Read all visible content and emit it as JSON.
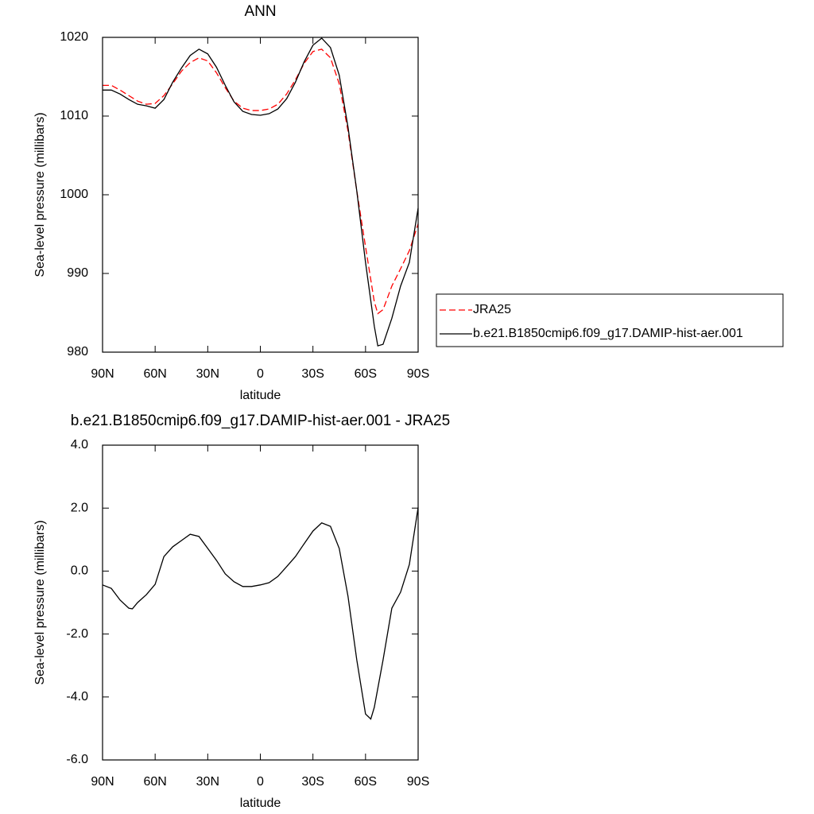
{
  "chart_data": [
    {
      "type": "line",
      "title": "ANN",
      "x_label": "latitude",
      "y_label": "Sea-level pressure (millibars)",
      "x": [
        90,
        85,
        80,
        75,
        70,
        65,
        60,
        55,
        50,
        45,
        40,
        35,
        30,
        25,
        20,
        15,
        10,
        5,
        0,
        -5,
        -10,
        -15,
        -20,
        -25,
        -30,
        -35,
        -40,
        -45,
        -50,
        -55,
        -60,
        -65,
        -67,
        -70,
        -75,
        -80,
        -85,
        -90
      ],
      "series": [
        {
          "name": "JRA25",
          "color": "#ff0000",
          "dash": true,
          "values": [
            1013.9,
            1013.9,
            1013.3,
            1012.6,
            1011.9,
            1011.5,
            1011.6,
            1012.6,
            1014.1,
            1015.7,
            1016.8,
            1017.4,
            1017.0,
            1015.5,
            1013.6,
            1011.9,
            1011.0,
            1010.7,
            1010.7,
            1010.9,
            1011.5,
            1012.8,
            1014.6,
            1016.7,
            1018.2,
            1018.5,
            1017.4,
            1014.1,
            1008.1,
            1000.5,
            993.4,
            986.4,
            984.9,
            985.4,
            988.4,
            990.6,
            992.9,
            996.3
          ]
        },
        {
          "name": "b.e21.B1850cmip6.f09_g17.DAMIP-hist-aer.001",
          "color": "#000000",
          "dash": false,
          "values": [
            1013.3,
            1013.3,
            1012.8,
            1012.1,
            1011.5,
            1011.3,
            1011.0,
            1012.1,
            1014.3,
            1016.1,
            1017.7,
            1018.5,
            1017.9,
            1016.2,
            1013.9,
            1011.8,
            1010.6,
            1010.2,
            1010.1,
            1010.3,
            1010.9,
            1012.2,
            1014.3,
            1016.9,
            1019.0,
            1019.9,
            1018.7,
            1015.2,
            1008.6,
            1000.5,
            991.4,
            983.3,
            980.8,
            981.0,
            984.3,
            988.4,
            991.4,
            998.3
          ]
        }
      ],
      "xlim": [
        90,
        -90
      ],
      "xticks": [
        {
          "value": 90,
          "label": "90N"
        },
        {
          "value": 60,
          "label": "60N"
        },
        {
          "value": 30,
          "label": "30N"
        },
        0,
        {
          "value": -30,
          "label": "30S"
        },
        {
          "value": -60,
          "label": "60S"
        },
        {
          "value": -90,
          "label": "90S"
        }
      ],
      "ylim": [
        980,
        1020
      ],
      "yticks": [
        980,
        990,
        1000,
        1010,
        1020
      ],
      "legend": "right"
    },
    {
      "type": "line",
      "title": "b.e21.B1850cmip6.f09_g17.DAMIP-hist-aer.001 - JRA25",
      "x_label": "latitude",
      "y_label": "Sea-level pressure (millibars)",
      "x": [
        90,
        85,
        80,
        75,
        73,
        70,
        65,
        60,
        55,
        50,
        45,
        40,
        35,
        30,
        25,
        20,
        15,
        10,
        5,
        0,
        -5,
        -10,
        -15,
        -20,
        -25,
        -30,
        -35,
        -40,
        -45,
        -50,
        -55,
        -60,
        -63,
        -65,
        -70,
        -75,
        -80,
        -85,
        -90
      ],
      "series": [
        {
          "color": "#000000",
          "dash": false,
          "values": [
            -0.44,
            -0.55,
            -0.92,
            -1.18,
            -1.2,
            -1.0,
            -0.75,
            -0.42,
            0.46,
            0.77,
            0.97,
            1.17,
            1.1,
            0.72,
            0.34,
            -0.09,
            -0.34,
            -0.49,
            -0.49,
            -0.44,
            -0.37,
            -0.17,
            0.14,
            0.46,
            0.87,
            1.27,
            1.53,
            1.42,
            0.72,
            -0.8,
            -2.82,
            -4.54,
            -4.7,
            -4.33,
            -2.82,
            -1.18,
            -0.67,
            0.21,
            2.02
          ]
        }
      ],
      "xlim": [
        90,
        -90
      ],
      "xticks": [
        {
          "value": 90,
          "label": "90N"
        },
        {
          "value": 60,
          "label": "60N"
        },
        {
          "value": 30,
          "label": "30N"
        },
        0,
        {
          "value": -30,
          "label": "30S"
        },
        {
          "value": -60,
          "label": "60S"
        },
        {
          "value": -90,
          "label": "90S"
        }
      ],
      "ylim": [
        -6,
        4
      ],
      "yticks": [
        {
          "value": -6,
          "label": "-6.0"
        },
        {
          "value": -4,
          "label": "-4.0"
        },
        {
          "value": -2,
          "label": "-2.0"
        },
        {
          "value": 0,
          "label": "0.0"
        },
        {
          "value": 2,
          "label": "2.0"
        },
        {
          "value": 4,
          "label": "4.0"
        }
      ]
    }
  ]
}
